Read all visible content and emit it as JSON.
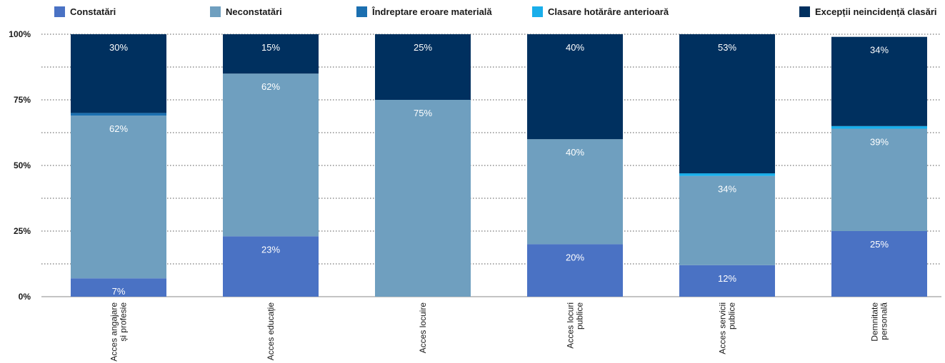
{
  "chart_data": {
    "type": "bar",
    "stacked": true,
    "orientation": "vertical",
    "title": "",
    "xlabel": "",
    "ylabel": "",
    "ylim": [
      0,
      100
    ],
    "yticks": [
      "0%",
      "25%",
      "50%",
      "75%",
      "100%"
    ],
    "grid": "horizontal-dotted",
    "legend_position": "top",
    "categories": [
      [
        "Acces angajare",
        "și profesie"
      ],
      [
        "Acces educație"
      ],
      [
        "Acces locuire"
      ],
      [
        "Acces locuri",
        "publice"
      ],
      [
        "Acces servicii",
        "publice"
      ],
      [
        "Demnitate",
        "personală"
      ]
    ],
    "series": [
      {
        "name": "Constatări",
        "color": "#4a72c4",
        "values": [
          7,
          23,
          0,
          20,
          12,
          25
        ],
        "labels": [
          "7%",
          "23%",
          "",
          "20%",
          "12%",
          "25%"
        ]
      },
      {
        "name": "Neconstatări",
        "color": "#6f9fbf",
        "values": [
          62,
          62,
          75,
          40,
          34,
          39
        ],
        "labels": [
          "62%",
          "62%",
          "75%",
          "40%",
          "34%",
          "39%"
        ]
      },
      {
        "name": "Îndreptare eroare materială",
        "color": "#1b6fb0",
        "values": [
          1,
          0,
          0,
          0,
          0,
          0
        ],
        "labels": [
          "1%",
          "",
          "",
          "",
          "",
          ""
        ]
      },
      {
        "name": "Clasare hotărâre anterioară",
        "color": "#19aeea",
        "values": [
          0,
          0,
          0,
          0,
          1,
          1
        ],
        "labels": [
          "",
          "",
          "",
          "",
          "1%",
          "1%"
        ]
      },
      {
        "name": "Excepții neincidență clasări",
        "color": "#00305f",
        "values": [
          30,
          15,
          25,
          40,
          53,
          34
        ],
        "labels": [
          "30%",
          "15%",
          "25%",
          "40%",
          "53%",
          "34%"
        ]
      }
    ]
  }
}
